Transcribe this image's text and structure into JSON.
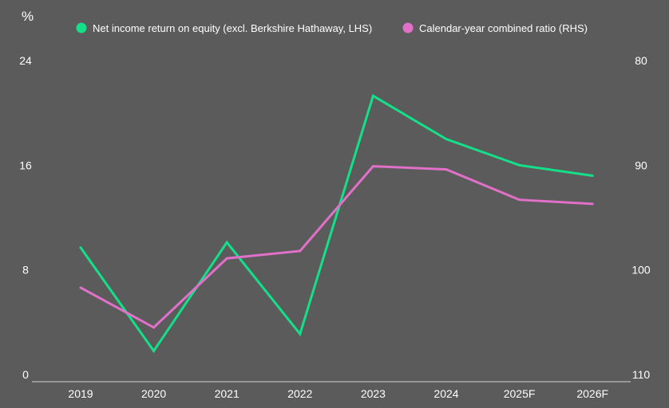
{
  "chart_data": {
    "type": "line",
    "unit_label": "%",
    "categories": [
      "2019",
      "2020",
      "2021",
      "2022",
      "2023",
      "2024",
      "2025F",
      "2026F"
    ],
    "left_axis": {
      "min": 0,
      "max": 24,
      "ticks": [
        "0",
        "8",
        "16",
        "24"
      ],
      "tick_values": [
        0,
        8,
        16,
        24
      ]
    },
    "right_axis": {
      "min": 80,
      "max": 110,
      "inverted": true,
      "ticks": [
        "80",
        "90",
        "100",
        "110"
      ],
      "tick_values": [
        80,
        90,
        100,
        110
      ]
    },
    "series": [
      {
        "name": "Net income return on equity (excl. Berkshire Hathaway, LHS)",
        "axis": "left",
        "color": "#14e08a",
        "values": [
          9.7,
          1.8,
          10.1,
          3.1,
          21.3,
          18.0,
          16.0,
          15.2
        ]
      },
      {
        "name": "Calendar-year combined ratio (RHS)",
        "axis": "right",
        "color": "#e070c8",
        "values": [
          101.7,
          105.5,
          98.9,
          98.2,
          90.1,
          90.4,
          93.3,
          93.7
        ]
      }
    ],
    "legend_position": "top"
  }
}
